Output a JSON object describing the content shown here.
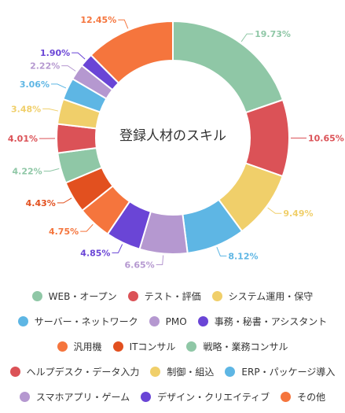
{
  "chart_data": {
    "type": "pie",
    "title": "登録人材のスキル",
    "legend_position": "bottom",
    "slices": [
      {
        "label": "WEB・オープン",
        "value": 19.73,
        "value_label": "19.73%",
        "color": "#8fc7a6"
      },
      {
        "label": "テスト・評価",
        "value": 10.65,
        "value_label": "10.65%",
        "color": "#db5257"
      },
      {
        "label": "システム運用・保守",
        "value": 9.49,
        "value_label": "9.49%",
        "color": "#f0cf6a"
      },
      {
        "label": "サーバー・ネットワーク",
        "value": 8.12,
        "value_label": "8.12%",
        "color": "#5eb6e4"
      },
      {
        "label": "PMO",
        "value": 6.65,
        "value_label": "6.65%",
        "color": "#b598d0"
      },
      {
        "label": "事務・秘書・アシスタント",
        "value": 4.85,
        "value_label": "4.85%",
        "color": "#6a45d6"
      },
      {
        "label": "汎用機",
        "value": 4.75,
        "value_label": "4.75%",
        "color": "#f5753d"
      },
      {
        "label": "ITコンサル",
        "value": 4.43,
        "value_label": "4.43%",
        "color": "#e2501f"
      },
      {
        "label": "戦略・業務コンサル",
        "value": 4.22,
        "value_label": "4.22%",
        "color": "#8fc7a6"
      },
      {
        "label": "ヘルプデスク・データ入力",
        "value": 4.01,
        "value_label": "4.01%",
        "color": "#db5257"
      },
      {
        "label": "制御・組込",
        "value": 3.48,
        "value_label": "3.48%",
        "color": "#f0cf6a"
      },
      {
        "label": "ERP・パッケージ導入",
        "value": 3.06,
        "value_label": "3.06%",
        "color": "#5eb6e4"
      },
      {
        "label": "スマホアプリ・ゲーム",
        "value": 2.22,
        "value_label": "2.22%",
        "color": "#b598d0"
      },
      {
        "label": "デザイン・クリエイティブ",
        "value": 1.9,
        "value_label": "1.90%",
        "color": "#6a45d6"
      },
      {
        "label": "その他",
        "value": 12.45,
        "value_label": "12.45%",
        "color": "#f5753d"
      }
    ],
    "legend_rows": [
      [
        0,
        1,
        2
      ],
      [
        3,
        4,
        5
      ],
      [
        6,
        7,
        8
      ],
      [
        9,
        10,
        11
      ],
      [
        12,
        13,
        14
      ]
    ]
  }
}
